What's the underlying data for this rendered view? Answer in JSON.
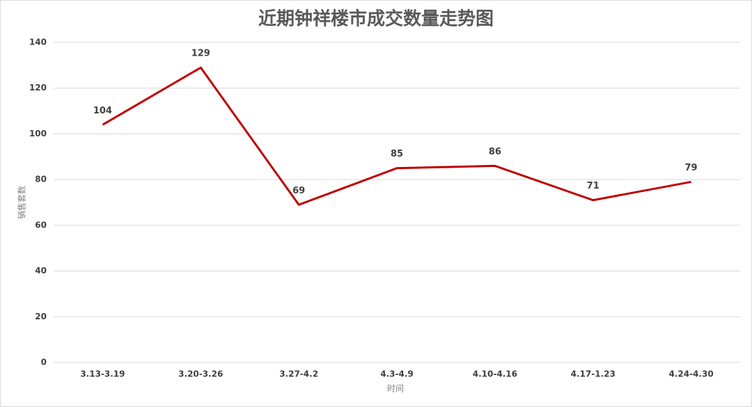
{
  "chart_data": {
    "type": "line",
    "title": "近期钟祥楼市成交数量走势图",
    "x_label": "时间",
    "y_label": "销售套数",
    "categories": [
      "3.13-3.19",
      "3.20-3.26",
      "3.27-4.2",
      "4.3-4.9",
      "4.10-4.16",
      "4.17-1.23",
      "4.24-4.30"
    ],
    "series": [
      {
        "name": "销售套数",
        "color": "#c00000",
        "values": [
          104,
          129,
          69,
          85,
          86,
          71,
          79
        ]
      }
    ],
    "ylim": [
      0,
      140
    ],
    "yticks": [
      0,
      20,
      40,
      60,
      80,
      100,
      120,
      140
    ],
    "grid": true,
    "legend": false
  }
}
